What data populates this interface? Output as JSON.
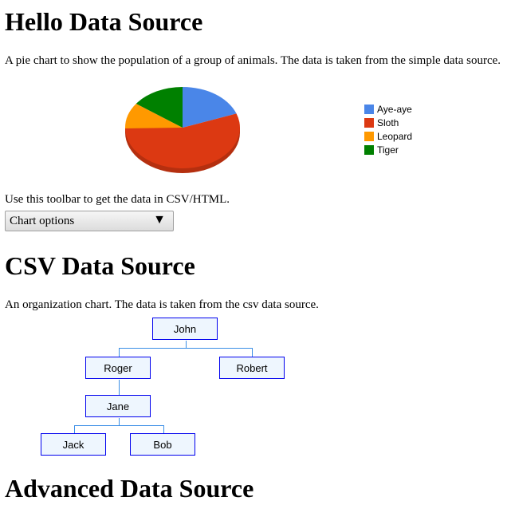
{
  "sections": [
    {
      "title": "Hello Data Source",
      "description": "A pie chart to show the population of a group of animals. The data is taken from the simple data source."
    },
    {
      "title": "CSV Data Source",
      "description": "An organization chart. The data is taken from the csv data source."
    },
    {
      "title": "Advanced Data Source"
    }
  ],
  "toolbar": {
    "description": "Use this toolbar to get the data in CSV/HTML.",
    "select_label": "Chart options",
    "arrow": "▼"
  },
  "chart_data": {
    "type": "pie",
    "is3D": true,
    "legend": "right",
    "categories": [
      "Aye-aye",
      "Sloth",
      "Leopard",
      "Tiger"
    ],
    "values": [
      19.4,
      55.3,
      10.3,
      15.0
    ],
    "colors": [
      "#4a86e8",
      "#dc3912",
      "#ff9900",
      "#008000"
    ]
  },
  "org_chart": {
    "nodes": [
      {
        "name": "John",
        "parent": null
      },
      {
        "name": "Roger",
        "parent": "John"
      },
      {
        "name": "Robert",
        "parent": "John"
      },
      {
        "name": "Jane",
        "parent": "Roger"
      },
      {
        "name": "Jack",
        "parent": "Jane"
      },
      {
        "name": "Bob",
        "parent": "Jane"
      }
    ]
  }
}
